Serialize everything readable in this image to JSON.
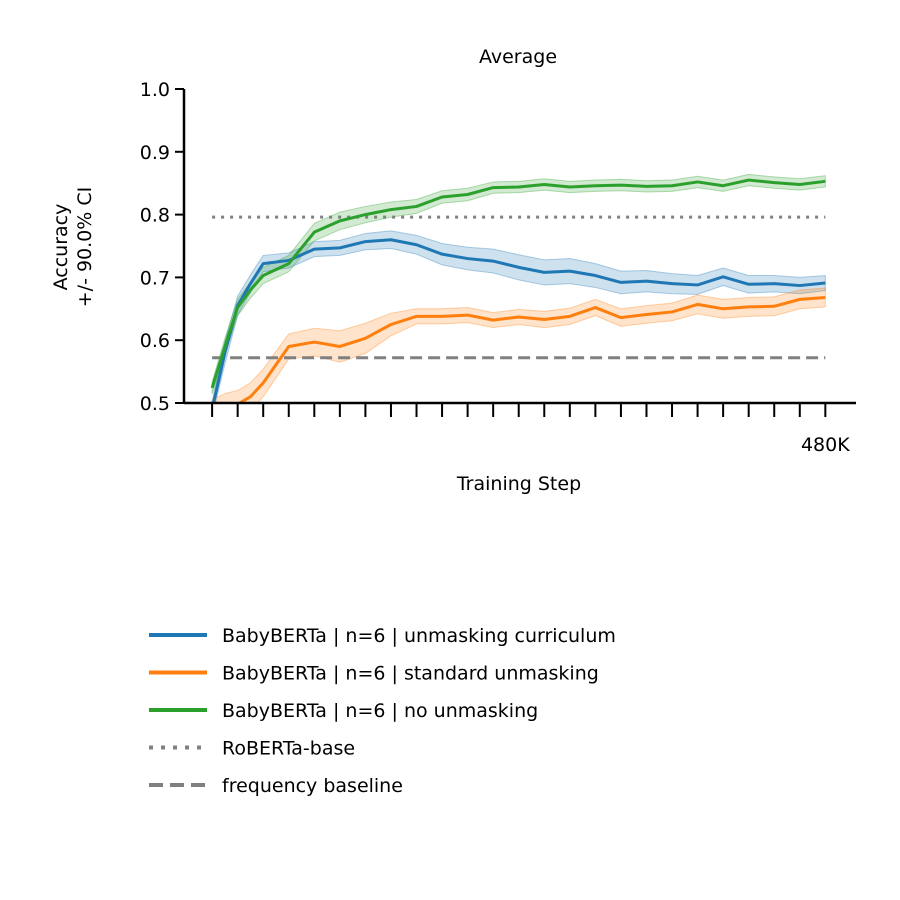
{
  "chart_data": {
    "type": "line",
    "title": "Average",
    "xlabel": "Training Step",
    "ylabel": [
      "Accuracy",
      "+/- 90.0% CI"
    ],
    "ylim": [
      0.5,
      1.0
    ],
    "xlim": [
      -1.1,
      25.2
    ],
    "yticks": [
      0.5,
      0.6,
      0.7,
      0.8,
      0.9,
      1.0
    ],
    "ytick_labels": [
      "0.5",
      "0.6",
      "0.7",
      "0.8",
      "0.9",
      "1.0"
    ],
    "xticks": [
      0,
      1,
      2,
      3,
      4,
      5,
      6,
      7,
      8,
      9,
      10,
      11,
      12,
      13,
      14,
      15,
      16,
      17,
      18,
      19,
      20,
      21,
      22,
      23,
      24
    ],
    "xtick_labels": [
      "",
      "",
      "",
      "",
      "",
      "",
      "",
      "",
      "",
      "",
      "",
      "",
      "",
      "",
      "",
      "",
      "",
      "",
      "",
      "",
      "",
      "",
      "",
      "",
      "480K"
    ],
    "grid": false,
    "legend_position": "below",
    "series": [
      {
        "name": "BabyBERTa | n=6 | unmasking curriculum",
        "color": "#1f77b4",
        "x": [
          0,
          0.5,
          1,
          1.5,
          2,
          3,
          4,
          5,
          6,
          7,
          8,
          9,
          10,
          11,
          12,
          13,
          14,
          15,
          16,
          17,
          18,
          19,
          20,
          21,
          22,
          23,
          24
        ],
        "values": [
          0.49,
          0.58,
          0.655,
          0.69,
          0.722,
          0.727,
          0.745,
          0.747,
          0.757,
          0.76,
          0.752,
          0.737,
          0.73,
          0.726,
          0.716,
          0.708,
          0.71,
          0.703,
          0.692,
          0.694,
          0.69,
          0.688,
          0.701,
          0.689,
          0.69,
          0.687,
          0.691
        ],
        "ci_half": [
          0.012,
          0.018,
          0.015,
          0.014,
          0.013,
          0.012,
          0.012,
          0.012,
          0.013,
          0.014,
          0.015,
          0.017,
          0.018,
          0.019,
          0.02,
          0.02,
          0.02,
          0.019,
          0.018,
          0.017,
          0.016,
          0.015,
          0.014,
          0.014,
          0.013,
          0.013,
          0.012
        ]
      },
      {
        "name": "BabyBERTa | n=6 | standard unmasking",
        "color": "#ff7f0e",
        "x": [
          0,
          0.5,
          1,
          1.5,
          2,
          3,
          4,
          5,
          6,
          7,
          8,
          9,
          10,
          11,
          12,
          13,
          14,
          15,
          16,
          17,
          18,
          19,
          20,
          21,
          22,
          23,
          24
        ],
        "values": [
          0.49,
          0.495,
          0.498,
          0.51,
          0.532,
          0.59,
          0.597,
          0.59,
          0.603,
          0.625,
          0.638,
          0.638,
          0.64,
          0.632,
          0.637,
          0.633,
          0.638,
          0.652,
          0.636,
          0.641,
          0.645,
          0.657,
          0.65,
          0.653,
          0.654,
          0.665,
          0.668
        ],
        "ci_half": [
          0.015,
          0.02,
          0.022,
          0.022,
          0.022,
          0.02,
          0.022,
          0.025,
          0.024,
          0.018,
          0.012,
          0.012,
          0.012,
          0.012,
          0.012,
          0.013,
          0.013,
          0.013,
          0.014,
          0.014,
          0.014,
          0.015,
          0.015,
          0.015,
          0.015,
          0.015,
          0.015
        ]
      },
      {
        "name": "BabyBERTa | n=6 | no unmasking",
        "color": "#2ca02c",
        "x": [
          0,
          0.5,
          1,
          1.5,
          2,
          3,
          4,
          5,
          6,
          7,
          8,
          9,
          10,
          11,
          12,
          13,
          14,
          15,
          16,
          17,
          18,
          19,
          20,
          21,
          22,
          23,
          24
        ],
        "values": [
          0.524,
          0.59,
          0.652,
          0.68,
          0.703,
          0.722,
          0.772,
          0.79,
          0.8,
          0.808,
          0.813,
          0.828,
          0.832,
          0.843,
          0.844,
          0.848,
          0.844,
          0.846,
          0.847,
          0.845,
          0.846,
          0.852,
          0.846,
          0.855,
          0.851,
          0.848,
          0.853
        ],
        "ci_half": [
          0.01,
          0.013,
          0.013,
          0.013,
          0.013,
          0.013,
          0.014,
          0.014,
          0.013,
          0.012,
          0.011,
          0.01,
          0.01,
          0.009,
          0.009,
          0.009,
          0.009,
          0.009,
          0.009,
          0.009,
          0.009,
          0.009,
          0.009,
          0.009,
          0.009,
          0.009,
          0.009
        ]
      }
    ],
    "reference_lines": [
      {
        "name": "RoBERTa-base",
        "value": 0.796,
        "color": "#808080",
        "style": "dotted"
      },
      {
        "name": "frequency baseline",
        "value": 0.572,
        "color": "#808080",
        "style": "dashed"
      }
    ]
  }
}
